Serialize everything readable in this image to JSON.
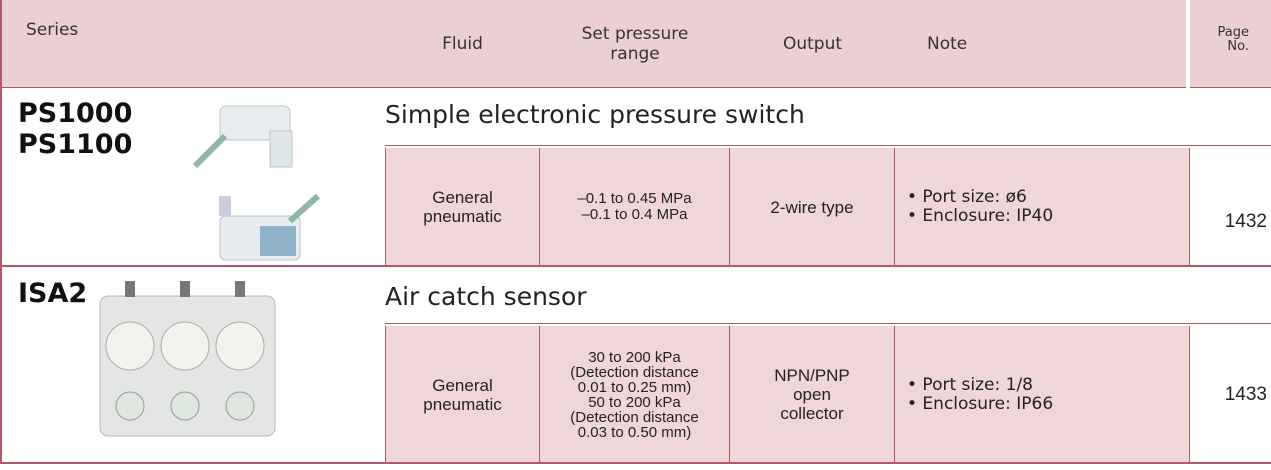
{
  "header": {
    "series": "Series",
    "fluid": "Fluid",
    "set_pressure_range": [
      "Set pressure",
      "range"
    ],
    "output": "Output",
    "note": "Note",
    "page_no": [
      "Page",
      "No."
    ]
  },
  "rows": [
    {
      "series": [
        "PS1000",
        "PS1100"
      ],
      "title": "Simple electronic pressure switch",
      "fluid": [
        "General",
        "pneumatic"
      ],
      "set_pressure_range": [
        "–0.1 to 0.45 MPa",
        "–0.1 to 0.4 MPa"
      ],
      "output": [
        "2-wire type"
      ],
      "note": [
        "• Port size: ø6",
        "• Enclosure: IP40"
      ],
      "page": 1432
    },
    {
      "series": [
        "ISA2"
      ],
      "title": "Air catch sensor",
      "fluid": [
        "General",
        "pneumatic"
      ],
      "set_pressure_range": [
        "30 to 200 kPa",
        "(Detection distance",
        "0.01 to 0.25 mm)",
        "50 to 200 kPa",
        "(Detection distance",
        "0.03 to 0.50 mm)"
      ],
      "output": [
        "NPN/PNP",
        "open",
        "collector"
      ],
      "note": [
        "• Port size: 1/8",
        "• Enclosure: IP66"
      ],
      "page": 1433
    }
  ]
}
